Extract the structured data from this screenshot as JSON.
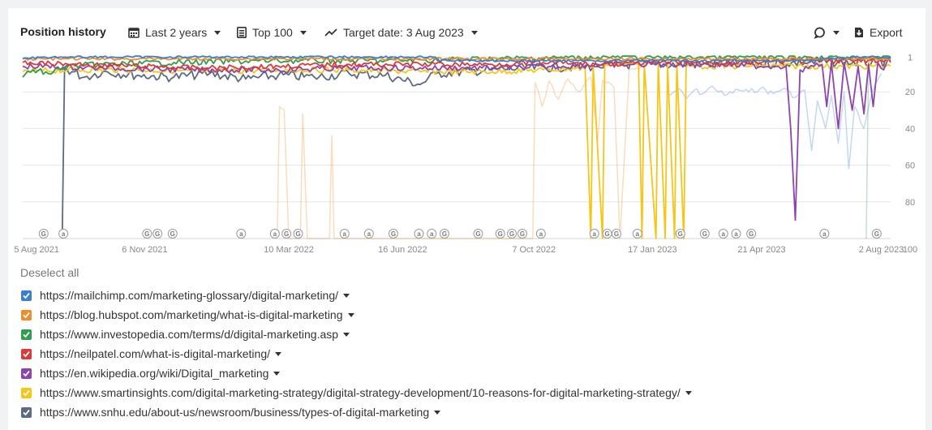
{
  "toolbar": {
    "title": "Position history",
    "period_label": "Last 2 years",
    "top_label": "Top 100",
    "target_label": "Target date: 3 Aug 2023",
    "export_label": "Export"
  },
  "legend": {
    "deselect_label": "Deselect all",
    "items": [
      {
        "url": "https://mailchimp.com/marketing-glossary/digital-marketing/",
        "color": "#3a7fd0"
      },
      {
        "url": "https://blog.hubspot.com/marketing/what-is-digital-marketing",
        "color": "#f28c28"
      },
      {
        "url": "https://www.investopedia.com/terms/d/digital-marketing.asp",
        "color": "#2e9e4f"
      },
      {
        "url": "https://neilpatel.com/what-is-digital-marketing/",
        "color": "#e03838"
      },
      {
        "url": "https://en.wikipedia.org/wiki/Digital_marketing",
        "color": "#8e44ad"
      },
      {
        "url": "https://www.smartinsights.com/digital-marketing-strategy/digital-strategy-development/10-reasons-for-digital-marketing-strategy/",
        "color": "#f5c518"
      },
      {
        "url": "https://www.snhu.edu/about-us/newsroom/business/types-of-digital-marketing",
        "color": "#5c6b80"
      }
    ]
  },
  "chart_data": {
    "type": "line",
    "x_range": [
      "2021-07-24",
      "2023-08-10"
    ],
    "y_reversed": true,
    "ylim": [
      0,
      100
    ],
    "y_ticks": [
      1,
      20,
      40,
      60,
      80,
      100
    ],
    "x_ticks": [
      {
        "date": "2021-08-05",
        "label": "5 Aug 2021"
      },
      {
        "date": "2021-11-06",
        "label": "6 Nov 2021"
      },
      {
        "date": "2022-03-10",
        "label": "10 Mar 2022"
      },
      {
        "date": "2022-06-16",
        "label": "16 Jun 2022"
      },
      {
        "date": "2022-10-07",
        "label": "7 Oct 2022"
      },
      {
        "date": "2023-01-17",
        "label": "17 Jan 2023"
      },
      {
        "date": "2023-04-21",
        "label": "21 Apr 2023"
      },
      {
        "date": "2023-08-02",
        "label": "2 Aug 2023"
      }
    ],
    "markers": [
      {
        "date": "2021-08-11",
        "kind": "G"
      },
      {
        "date": "2021-08-28",
        "kind": "a"
      },
      {
        "date": "2021-11-08",
        "kind": "G"
      },
      {
        "date": "2021-11-17",
        "kind": "G"
      },
      {
        "date": "2021-11-30",
        "kind": "G"
      },
      {
        "date": "2022-01-28",
        "kind": "a"
      },
      {
        "date": "2022-02-26",
        "kind": "a"
      },
      {
        "date": "2022-03-08",
        "kind": "G"
      },
      {
        "date": "2022-03-18",
        "kind": "G"
      },
      {
        "date": "2022-04-27",
        "kind": "a"
      },
      {
        "date": "2022-05-18",
        "kind": "a"
      },
      {
        "date": "2022-06-08",
        "kind": "G"
      },
      {
        "date": "2022-06-30",
        "kind": "a"
      },
      {
        "date": "2022-07-11",
        "kind": "a"
      },
      {
        "date": "2022-07-22",
        "kind": "G"
      },
      {
        "date": "2022-08-20",
        "kind": "G"
      },
      {
        "date": "2022-09-08",
        "kind": "G"
      },
      {
        "date": "2022-09-18",
        "kind": "G"
      },
      {
        "date": "2022-09-27",
        "kind": "G"
      },
      {
        "date": "2022-10-13",
        "kind": "a"
      },
      {
        "date": "2022-11-28",
        "kind": "a"
      },
      {
        "date": "2022-12-09",
        "kind": "G"
      },
      {
        "date": "2022-12-17",
        "kind": "G"
      },
      {
        "date": "2023-01-04",
        "kind": "a"
      },
      {
        "date": "2023-02-10",
        "kind": "G"
      },
      {
        "date": "2023-03-03",
        "kind": "G"
      },
      {
        "date": "2023-03-19",
        "kind": "a"
      },
      {
        "date": "2023-03-30",
        "kind": "a"
      },
      {
        "date": "2023-04-12",
        "kind": "G"
      },
      {
        "date": "2023-06-14",
        "kind": "a"
      },
      {
        "date": "2023-07-29",
        "kind": "G"
      }
    ],
    "series": [
      {
        "name": "https://mailchimp.com/marketing-glossary/digital-marketing/",
        "color": "#3a7fd0",
        "points": [
          [
            "2021-07-24",
            2
          ],
          [
            "2021-08-10",
            1
          ],
          [
            "2021-10-01",
            1
          ],
          [
            "2021-12-15",
            1
          ],
          [
            "2022-03-01",
            1
          ],
          [
            "2022-06-10",
            1
          ],
          [
            "2022-07-14",
            1
          ],
          [
            "2022-07-16",
            3
          ],
          [
            "2022-09-10",
            3
          ],
          [
            "2022-12-01",
            3
          ],
          [
            "2023-03-01",
            3
          ],
          [
            "2023-06-01",
            3
          ],
          [
            "2023-07-10",
            1
          ],
          [
            "2023-08-10",
            1
          ]
        ],
        "faded": [
          [
            "2023-02-01",
            22
          ],
          [
            "2023-02-08",
            18
          ],
          [
            "2023-02-15",
            24
          ],
          [
            "2023-02-22",
            19
          ],
          [
            "2023-03-01",
            21
          ],
          [
            "2023-03-10",
            17
          ],
          [
            "2023-03-20",
            22
          ],
          [
            "2023-04-01",
            19
          ],
          [
            "2023-04-10",
            20
          ],
          [
            "2023-04-20",
            18
          ],
          [
            "2023-05-01",
            21
          ],
          [
            "2023-05-10",
            18
          ],
          [
            "2023-05-20",
            23
          ],
          [
            "2023-05-28",
            19
          ],
          [
            "2023-06-03",
            52
          ],
          [
            "2023-06-08",
            25
          ],
          [
            "2023-06-15",
            40
          ],
          [
            "2023-06-20",
            22
          ],
          [
            "2023-06-26",
            48
          ],
          [
            "2023-07-01",
            20
          ],
          [
            "2023-07-05",
            62
          ],
          [
            "2023-07-10",
            28
          ],
          [
            "2023-07-18",
            40
          ],
          [
            "2023-07-25",
            20
          ],
          [
            "2023-08-02",
            10
          ]
        ]
      },
      {
        "name": "https://blog.hubspot.com/marketing/what-is-digital-marketing",
        "color": "#f28c28",
        "points": [
          [
            "2021-07-24",
            2
          ],
          [
            "2021-09-01",
            2
          ],
          [
            "2021-11-01",
            2
          ],
          [
            "2022-01-01",
            2
          ],
          [
            "2022-04-01",
            2
          ],
          [
            "2022-07-01",
            2
          ],
          [
            "2022-10-01",
            2
          ],
          [
            "2023-01-01",
            2
          ],
          [
            "2023-04-01",
            2
          ],
          [
            "2023-07-01",
            2
          ],
          [
            "2023-08-10",
            2
          ]
        ],
        "faded": [
          [
            "2022-02-28",
            100
          ],
          [
            "2022-03-02",
            28
          ],
          [
            "2022-03-06",
            30
          ],
          [
            "2022-03-10",
            100
          ],
          [
            "2022-03-20",
            100
          ],
          [
            "2022-03-22",
            32
          ],
          [
            "2022-03-26",
            100
          ],
          [
            "2022-04-14",
            100
          ],
          [
            "2022-04-16",
            44
          ],
          [
            "2022-04-18",
            100
          ],
          [
            "2022-10-06",
            100
          ],
          [
            "2022-10-08",
            15
          ],
          [
            "2022-10-14",
            28
          ],
          [
            "2022-10-20",
            14
          ],
          [
            "2022-10-28",
            24
          ],
          [
            "2022-11-05",
            13
          ],
          [
            "2022-11-15",
            20
          ],
          [
            "2022-11-25",
            12
          ],
          [
            "2022-12-01",
            46
          ],
          [
            "2022-12-05",
            14
          ],
          [
            "2022-12-15",
            18
          ],
          [
            "2022-12-20",
            100
          ],
          [
            "2022-12-28",
            8
          ],
          [
            "2023-01-15",
            4
          ],
          [
            "2023-03-01",
            5
          ],
          [
            "2023-06-01",
            4
          ],
          [
            "2023-08-02",
            3
          ]
        ]
      },
      {
        "name": "https://www.investopedia.com/terms/d/digital-marketing.asp",
        "color": "#2e9e4f",
        "points": [
          [
            "2021-07-24",
            12
          ],
          [
            "2021-08-02",
            8
          ],
          [
            "2021-08-15",
            10
          ],
          [
            "2021-09-01",
            6
          ],
          [
            "2021-10-01",
            5
          ],
          [
            "2021-12-01",
            4
          ],
          [
            "2022-03-01",
            3
          ],
          [
            "2022-06-01",
            3
          ],
          [
            "2022-09-01",
            2
          ],
          [
            "2022-12-01",
            1
          ],
          [
            "2023-03-01",
            1
          ],
          [
            "2023-06-01",
            1
          ],
          [
            "2023-08-10",
            1
          ]
        ],
        "faded": [
          [
            "2023-07-20",
            100
          ],
          [
            "2023-07-22",
            4
          ],
          [
            "2023-08-02",
            3
          ]
        ]
      },
      {
        "name": "https://neilpatel.com/what-is-digital-marketing/",
        "color": "#e03838",
        "points": [
          [
            "2021-07-24",
            4
          ],
          [
            "2021-09-01",
            5
          ],
          [
            "2021-11-01",
            6
          ],
          [
            "2022-01-01",
            7
          ],
          [
            "2022-03-01",
            6
          ],
          [
            "2022-05-01",
            5
          ],
          [
            "2022-07-01",
            5
          ],
          [
            "2022-09-01",
            5
          ],
          [
            "2022-10-15",
            4
          ],
          [
            "2022-12-01",
            5
          ],
          [
            "2023-02-01",
            4
          ],
          [
            "2023-04-01",
            4
          ],
          [
            "2023-06-01",
            3
          ],
          [
            "2023-08-10",
            3
          ]
        ]
      },
      {
        "name": "https://en.wikipedia.org/wiki/Digital_marketing",
        "color": "#8e44ad",
        "points": [
          [
            "2021-07-24",
            6
          ],
          [
            "2021-10-01",
            7
          ],
          [
            "2021-12-15",
            8
          ],
          [
            "2022-03-01",
            8
          ],
          [
            "2022-05-01",
            7
          ],
          [
            "2022-07-01",
            7
          ],
          [
            "2022-09-01",
            7
          ],
          [
            "2022-11-01",
            6
          ],
          [
            "2023-01-01",
            5
          ],
          [
            "2023-03-01",
            5
          ],
          [
            "2023-05-01",
            6
          ],
          [
            "2023-05-12",
            6
          ],
          [
            "2023-05-16",
            40
          ],
          [
            "2023-05-20",
            90
          ],
          [
            "2023-05-24",
            8
          ],
          [
            "2023-06-05",
            6
          ],
          [
            "2023-06-12",
            5
          ],
          [
            "2023-06-16",
            28
          ],
          [
            "2023-06-20",
            4
          ],
          [
            "2023-06-26",
            40
          ],
          [
            "2023-07-01",
            4
          ],
          [
            "2023-07-08",
            30
          ],
          [
            "2023-07-13",
            6
          ],
          [
            "2023-07-18",
            32
          ],
          [
            "2023-07-22",
            5
          ],
          [
            "2023-07-26",
            28
          ],
          [
            "2023-07-30",
            4
          ],
          [
            "2023-08-04",
            8
          ],
          [
            "2023-08-10",
            1
          ]
        ]
      },
      {
        "name": "https://www.smartinsights.com/digital-marketing-strategy/digital-strategy-development/10-reasons-for-digital-marketing-strategy/",
        "color": "#f5c518",
        "points": [
          [
            "2021-07-24",
            9
          ],
          [
            "2021-09-01",
            8
          ],
          [
            "2021-11-01",
            8
          ],
          [
            "2022-01-01",
            9
          ],
          [
            "2022-03-01",
            8
          ],
          [
            "2022-05-01",
            8
          ],
          [
            "2022-07-01",
            9
          ],
          [
            "2022-09-01",
            9
          ],
          [
            "2022-10-15",
            8
          ],
          [
            "2022-11-20",
            7
          ],
          [
            "2022-11-25",
            100
          ],
          [
            "2022-11-27",
            6
          ],
          [
            "2022-12-05",
            100
          ],
          [
            "2022-12-07",
            5
          ],
          [
            "2022-12-20",
            4
          ],
          [
            "2023-01-05",
            5
          ],
          [
            "2023-01-08",
            100
          ],
          [
            "2023-01-10",
            5
          ],
          [
            "2023-01-20",
            100
          ],
          [
            "2023-01-22",
            4
          ],
          [
            "2023-01-28",
            100
          ],
          [
            "2023-01-30",
            5
          ],
          [
            "2023-02-05",
            100
          ],
          [
            "2023-02-07",
            4
          ],
          [
            "2023-02-13",
            100
          ],
          [
            "2023-02-15",
            6
          ],
          [
            "2023-02-25",
            6
          ],
          [
            "2023-08-10",
            6
          ]
        ]
      },
      {
        "name": "https://www.snhu.edu/about-us/newsroom/business/types-of-digital-marketing",
        "color": "#5c6b80",
        "points": [
          [
            "2021-08-27",
            100
          ],
          [
            "2021-08-29",
            7
          ],
          [
            "2021-09-15",
            12
          ],
          [
            "2021-10-01",
            9
          ],
          [
            "2021-11-01",
            11
          ],
          [
            "2021-12-01",
            12
          ],
          [
            "2022-01-01",
            10
          ],
          [
            "2022-02-01",
            13
          ],
          [
            "2022-03-01",
            11
          ],
          [
            "2022-04-01",
            12
          ],
          [
            "2022-05-01",
            10
          ],
          [
            "2022-06-01",
            11
          ],
          [
            "2022-07-01",
            16
          ],
          [
            "2022-07-15",
            10
          ],
          [
            "2022-09-01",
            8
          ],
          [
            "2022-10-01",
            7
          ],
          [
            "2022-12-01",
            6
          ],
          [
            "2023-01-01",
            5
          ],
          [
            "2023-03-01",
            5
          ],
          [
            "2023-06-01",
            4
          ],
          [
            "2023-08-10",
            4
          ]
        ]
      }
    ]
  }
}
